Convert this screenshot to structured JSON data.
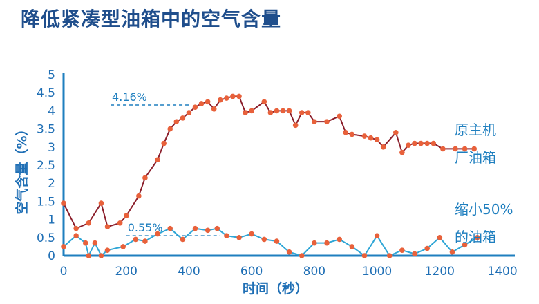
{
  "chart_data": {
    "type": "line",
    "title": "降低紧凑型油箱中的空气含量",
    "xlabel": "时间（秒）",
    "ylabel": "空气含量（%）",
    "xlim": [
      0,
      1400
    ],
    "ylim": [
      0,
      5
    ],
    "x_ticks": [
      "0",
      "200",
      "400",
      "600",
      "800",
      "1000",
      "1200",
      "1400"
    ],
    "y_ticks": [
      "0",
      "0.5",
      "1",
      "1.5",
      "2",
      "2.5",
      "3",
      "3.5",
      "4",
      "4.5",
      "5"
    ],
    "colors": {
      "axis": "#1f7fbf",
      "upper_line": "#8b1e2b",
      "lower_line": "#2fa6d6",
      "marker": "#e8613b",
      "annotation": "#1f7fbf"
    },
    "series": [
      {
        "name": "原主机厂油箱",
        "name_lines": [
          "原主机",
          "厂油箱"
        ],
        "x": [
          0,
          40,
          80,
          120,
          140,
          180,
          200,
          240,
          260,
          300,
          320,
          340,
          360,
          380,
          400,
          420,
          440,
          460,
          480,
          500,
          520,
          540,
          560,
          580,
          600,
          640,
          660,
          680,
          700,
          720,
          740,
          760,
          780,
          800,
          840,
          880,
          900,
          920,
          960,
          980,
          1000,
          1020,
          1060,
          1080,
          1100,
          1120,
          1140,
          1160,
          1180,
          1210,
          1250,
          1280,
          1310
        ],
        "values": [
          1.45,
          0.75,
          0.9,
          1.45,
          0.8,
          0.9,
          1.1,
          1.65,
          2.15,
          2.65,
          3.1,
          3.5,
          3.7,
          3.8,
          3.95,
          4.1,
          4.2,
          4.25,
          4.05,
          4.3,
          4.35,
          4.4,
          4.4,
          3.95,
          4.0,
          4.25,
          3.95,
          4.0,
          4.0,
          4.0,
          3.6,
          3.95,
          3.95,
          3.7,
          3.7,
          3.85,
          3.4,
          3.35,
          3.3,
          3.25,
          3.2,
          3.0,
          3.4,
          2.85,
          3.05,
          3.1,
          3.1,
          3.1,
          3.1,
          2.95,
          2.95,
          2.95,
          2.95
        ]
      },
      {
        "name": "缩小50%的油箱",
        "name_lines": [
          "缩小50%",
          "的油箱"
        ],
        "x": [
          0,
          40,
          70,
          80,
          100,
          120,
          140,
          190,
          230,
          260,
          300,
          340,
          380,
          420,
          460,
          490,
          520,
          560,
          600,
          640,
          680,
          720,
          760,
          800,
          840,
          880,
          920,
          960,
          1000,
          1040,
          1080,
          1120,
          1160,
          1200,
          1240,
          1280,
          1320
        ],
        "values": [
          0.25,
          0.55,
          0.35,
          0.0,
          0.35,
          0.0,
          0.15,
          0.25,
          0.45,
          0.4,
          0.6,
          0.75,
          0.45,
          0.75,
          0.7,
          0.75,
          0.55,
          0.5,
          0.6,
          0.45,
          0.4,
          0.1,
          0.0,
          0.35,
          0.35,
          0.45,
          0.25,
          0.0,
          0.55,
          0.0,
          0.15,
          0.05,
          0.2,
          0.5,
          0.1,
          0.3,
          0.5
        ]
      }
    ],
    "annotations": [
      {
        "text": "4.16%",
        "value": 4.16,
        "x_start": 150,
        "x_end": 400
      },
      {
        "text": "0.55%",
        "value": 0.55,
        "x_start": 200,
        "x_end": 500
      }
    ],
    "grid": false
  }
}
